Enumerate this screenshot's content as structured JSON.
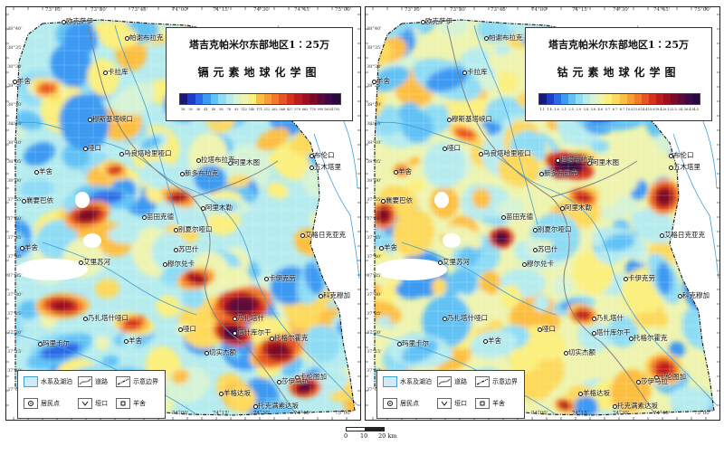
{
  "maps": [
    {
      "id": "left",
      "title_line1": "塔吉克帕米尔东部地区1∶25万",
      "title_line2": "镉元素地球化学图",
      "colorbar_ticks": [
        "18",
        "30",
        "36",
        "41",
        "49",
        "58",
        "78",
        "93",
        "112",
        "140",
        "171",
        "212",
        "262",
        "368",
        "427",
        "579",
        "662",
        "776",
        "999",
        "1003",
        "1753"
      ],
      "place_labels": [
        "欧克萨伊",
        "帕谢布拉克",
        "卡拉库",
        "羊舍",
        "穆斯基塔峡口",
        "哑口",
        "乌良塔哈里哑口",
        "羊舍",
        "阿里木图",
        "拉塔布拉克",
        "新多布拉克",
        "布伦口",
        "五木塔里",
        "襄要巴依",
        "苗田克德",
        "阿里木勒",
        "别夏尔哑口",
        "艾格日克亚克",
        "苏巴什",
        "羊舍",
        "艾里苏河",
        "穆尔兑卡",
        "卡伊克劳",
        "科克穆加",
        "乃扎塔什哑口",
        "乃扎塔什",
        "塔什库尔干",
        "哑口",
        "羊舍",
        "托格尔霍克",
        "玛里卡尔",
        "切实杰额",
        "卡伦图加",
        "莎伊马拉",
        "羊格达坂",
        "托克满素达坂"
      ],
      "lat_ticks": [
        "38°40'",
        "38°35'",
        "38°30'",
        "38°25'",
        "38°20'",
        "38°15'",
        "38°10'",
        "38°05'",
        "38°00'",
        "37°55'",
        "37°50'",
        "37°45'",
        "37°40'",
        "37°35'",
        "37°30'",
        "37°25'",
        "37°20'",
        "37°15'",
        "37°10'",
        "37°05'",
        "37°00'"
      ],
      "lon_ticks": [
        "73°15'",
        "73°30'",
        "73°45'",
        "74°00'",
        "74°15'",
        "74°30'",
        "74°45'",
        "75°00'"
      ]
    },
    {
      "id": "right",
      "title_line1": "塔吉克帕米尔东部地区1∶25万",
      "title_line2": "钴元素地球化学图",
      "colorbar_ticks": [
        "1.1",
        "1.4",
        "1.6",
        "2.1",
        "2.5",
        "2.9",
        "3.4",
        "3.8",
        "4.6",
        "5.7",
        "6.7",
        "8.7",
        "10.5",
        "11.6",
        "14.4",
        "15.8",
        "19.4",
        "20.1",
        "22.5",
        "24",
        "26.4",
        "34.5"
      ],
      "place_labels": [
        "欧克萨伊",
        "帕谢布拉克",
        "卡拉库",
        "羊舍",
        "穆斯基塔峡口",
        "哑口",
        "乌良塔哈里哑口",
        "羊舍",
        "阿里木图",
        "拉塔布拉克",
        "新多布拉克",
        "布伦口",
        "五木塔里",
        "襄要巴依",
        "苗田克德",
        "阿里木勒",
        "别夏尔哑口",
        "艾格日克亚克",
        "苏巴什",
        "羊舍",
        "艾里苏河",
        "穆尔兑卡",
        "卡伊克劳",
        "科克穆加",
        "乃扎塔什哑口",
        "乃扎塔什",
        "塔什库尔干",
        "哑口",
        "羊舍",
        "托格尔霍克",
        "玛里卡尔",
        "切实杰额",
        "卡伦图加",
        "莎伊马拉",
        "羊格达坂",
        "托克满素达坂"
      ],
      "lat_ticks": [
        "38°40'",
        "38°35'",
        "38°30'",
        "38°25'",
        "38°20'",
        "38°15'",
        "38°10'",
        "38°05'",
        "38°00'",
        "37°55'",
        "37°50'",
        "37°45'",
        "37°40'",
        "37°35'",
        "37°30'",
        "37°25'",
        "37°20'",
        "37°15'",
        "37°10'",
        "37°05'",
        "37°00'"
      ],
      "lon_ticks": [
        "73°15'",
        "73°30'",
        "73°45'",
        "74°00'",
        "74°15'",
        "74°30'",
        "74°45'",
        "75°00'"
      ]
    }
  ],
  "legend": {
    "water": "水系及湖泊",
    "road": "道路",
    "border": "示意边界",
    "residence": "居民点",
    "pass": "垭口",
    "sheep": "羊舍"
  },
  "scale": {
    "zero": "0",
    "ten": "10",
    "twenty": "20 km"
  },
  "colors": {
    "ramp": [
      "#19197a",
      "#1e3cc8",
      "#2a6ae6",
      "#3d9af2",
      "#62c2f5",
      "#8fdcf5",
      "#b7ecef",
      "#d6f3d6",
      "#eef4b0",
      "#fbef7d",
      "#fdd95c",
      "#fdbf43",
      "#fb9d33",
      "#f47a2b",
      "#e85524",
      "#d6331e",
      "#be1c1c",
      "#9c1020",
      "#7a0a28",
      "#5a0a3a",
      "#3a0a4a",
      "#2a0840"
    ],
    "water": "#3fa0dc",
    "border": "#111111",
    "road": "#808080"
  }
}
